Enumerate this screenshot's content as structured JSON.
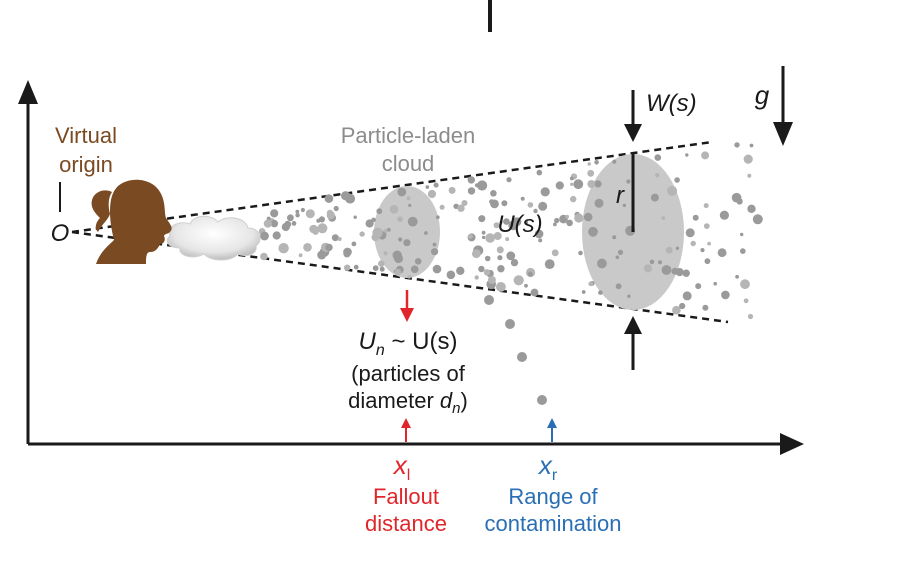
{
  "labels": {
    "virtual_origin_line1": "Virtual",
    "virtual_origin_line2": "origin",
    "origin_symbol": "O",
    "cloud_line1": "Particle-laden",
    "cloud_line2": "cloud",
    "velocity": "U(s)",
    "width": "W(s)",
    "gravity": "g",
    "radius": "r",
    "un_main": "U",
    "un_sub": "n",
    "un_rest": " ~ U(s)",
    "particles_line1": "(particles of",
    "particles_line2_pre": "diameter ",
    "particles_line2_d": "d",
    "particles_line2_sub": "n",
    "particles_line2_post": ")",
    "xl_main": "x",
    "xl_sub": "l",
    "xr_main": "x",
    "xr_sub": "r",
    "fallout_line1": "Fallout",
    "fallout_line2": "distance",
    "range_line1": "Range of",
    "range_line2": "contamination"
  },
  "colors": {
    "brown": "#7a4a22",
    "gray_text": "#8c8c8c",
    "red": "#e0262b",
    "blue": "#2a6fb5",
    "particle": "#9a9a9a",
    "cloud_fill": "#c9c9c9",
    "black": "#1a1a1a"
  },
  "icons": {
    "person": "person-silhouette-icon",
    "breath": "breath-cloud-icon"
  }
}
